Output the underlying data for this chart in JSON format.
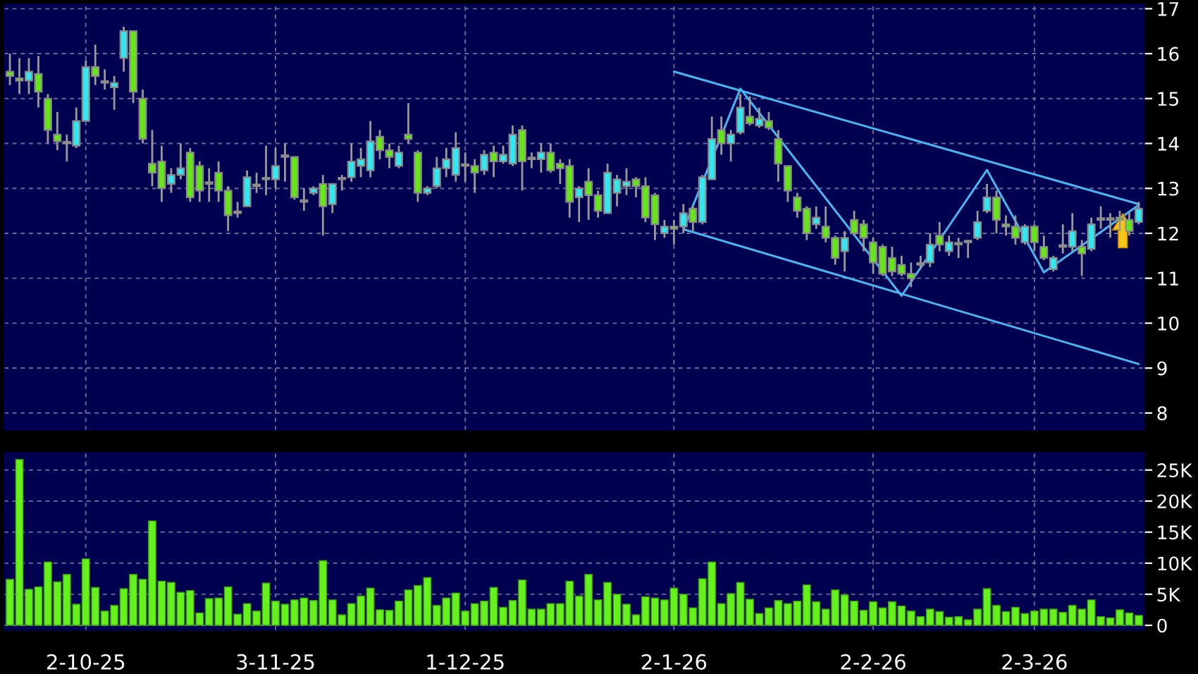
{
  "chart_data": [
    {
      "type": "candlestick",
      "categories": [
        null,
        null,
        null,
        null,
        null,
        null,
        null,
        null,
        null,
        null,
        null,
        null,
        null,
        null,
        null,
        null,
        null,
        null,
        null,
        null,
        null,
        null,
        null,
        null,
        null,
        null,
        null,
        null,
        null,
        null,
        null,
        null,
        null,
        null,
        null,
        null,
        null,
        null,
        null,
        null,
        null,
        null,
        null,
        null,
        null,
        null,
        null,
        null,
        null,
        null,
        null,
        null,
        null,
        null,
        null,
        null,
        null,
        null,
        null,
        null,
        null,
        null,
        null,
        null,
        null,
        null,
        null,
        null,
        null,
        null,
        null,
        null,
        null,
        null,
        null,
        null,
        null,
        null,
        null,
        null,
        null,
        null,
        null,
        null,
        null,
        null,
        null,
        null,
        null,
        null,
        null,
        null,
        null,
        null,
        null,
        null,
        null,
        null,
        null,
        null,
        null,
        null,
        null,
        null,
        null,
        null,
        null,
        null,
        null,
        null,
        null,
        null,
        null,
        null,
        null,
        null,
        null,
        null,
        null,
        null
      ],
      "ohlc": [
        [
          15.6,
          16.0,
          15.3,
          15.5
        ],
        [
          15.45,
          15.9,
          15.1,
          15.4
        ],
        [
          15.4,
          15.9,
          15.1,
          15.6
        ],
        [
          15.55,
          15.95,
          14.8,
          15.15
        ],
        [
          15.0,
          15.1,
          14.0,
          14.3
        ],
        [
          14.2,
          14.7,
          13.85,
          14.05
        ],
        [
          14.0,
          14.2,
          13.6,
          14.0
        ],
        [
          13.95,
          14.8,
          13.9,
          14.5
        ],
        [
          14.5,
          15.85,
          14.5,
          15.7
        ],
        [
          15.7,
          16.2,
          15.3,
          15.5
        ],
        [
          15.35,
          15.65,
          15.2,
          15.35
        ],
        [
          15.25,
          15.5,
          14.75,
          15.35
        ],
        [
          15.9,
          16.6,
          15.6,
          16.5
        ],
        [
          16.5,
          16.5,
          14.9,
          15.15
        ],
        [
          15.0,
          15.2,
          14.0,
          14.1
        ],
        [
          13.55,
          14.3,
          13.05,
          13.35
        ],
        [
          13.6,
          13.95,
          12.7,
          13.0
        ],
        [
          13.1,
          13.45,
          12.9,
          13.3
        ],
        [
          13.3,
          14.0,
          13.2,
          13.45
        ],
        [
          13.8,
          13.9,
          12.7,
          12.8
        ],
        [
          13.5,
          13.6,
          12.7,
          12.95
        ],
        [
          13.1,
          13.45,
          12.7,
          13.1
        ],
        [
          13.35,
          13.6,
          12.7,
          12.95
        ],
        [
          12.95,
          13.05,
          12.05,
          12.4
        ],
        [
          12.45,
          12.7,
          12.35,
          12.45
        ],
        [
          12.6,
          13.4,
          12.6,
          13.25
        ],
        [
          13.05,
          13.35,
          12.9,
          13.05
        ],
        [
          13.2,
          13.95,
          12.85,
          13.2
        ],
        [
          13.2,
          13.9,
          13.0,
          13.5
        ],
        [
          13.7,
          14.0,
          13.15,
          13.7
        ],
        [
          13.7,
          13.7,
          12.75,
          12.8
        ],
        [
          12.7,
          13.0,
          12.5,
          12.7
        ],
        [
          12.9,
          13.05,
          12.85,
          13.0
        ],
        [
          13.1,
          13.3,
          11.95,
          12.6
        ],
        [
          12.65,
          13.1,
          12.45,
          13.1
        ],
        [
          13.2,
          13.3,
          12.95,
          13.2
        ],
        [
          13.25,
          14.0,
          13.15,
          13.6
        ],
        [
          13.5,
          13.9,
          13.25,
          13.65
        ],
        [
          13.4,
          14.5,
          13.25,
          14.05
        ],
        [
          14.15,
          14.3,
          13.65,
          13.85
        ],
        [
          13.85,
          14.0,
          13.45,
          13.7
        ],
        [
          13.5,
          13.95,
          13.45,
          13.8
        ],
        [
          14.2,
          14.9,
          14.0,
          14.1
        ],
        [
          13.8,
          13.85,
          12.7,
          12.9
        ],
        [
          12.9,
          13.05,
          12.85,
          13.0
        ],
        [
          13.05,
          13.7,
          13.0,
          13.45
        ],
        [
          13.45,
          13.9,
          13.25,
          13.65
        ],
        [
          13.3,
          14.25,
          13.15,
          13.9
        ],
        [
          13.5,
          13.8,
          13.15,
          13.5
        ],
        [
          13.5,
          13.65,
          12.9,
          13.35
        ],
        [
          13.4,
          13.85,
          13.3,
          13.75
        ],
        [
          13.8,
          13.95,
          13.25,
          13.6
        ],
        [
          13.6,
          13.95,
          13.55,
          13.75
        ],
        [
          13.55,
          14.4,
          13.5,
          14.2
        ],
        [
          14.3,
          14.4,
          12.95,
          13.6
        ],
        [
          13.65,
          13.8,
          13.45,
          13.65
        ],
        [
          13.65,
          14.0,
          13.35,
          13.8
        ],
        [
          13.8,
          14.0,
          13.35,
          13.4
        ],
        [
          13.55,
          13.65,
          13.1,
          13.45
        ],
        [
          13.5,
          13.65,
          12.35,
          12.7
        ],
        [
          12.8,
          13.05,
          12.25,
          13.0
        ],
        [
          13.15,
          13.45,
          12.3,
          12.85
        ],
        [
          12.85,
          12.95,
          12.35,
          12.5
        ],
        [
          12.45,
          13.55,
          12.45,
          13.35
        ],
        [
          12.9,
          13.3,
          12.6,
          13.2
        ],
        [
          13.05,
          13.45,
          12.85,
          13.15
        ],
        [
          13.2,
          13.25,
          12.8,
          13.05
        ],
        [
          13.05,
          13.25,
          12.25,
          12.35
        ],
        [
          12.85,
          12.9,
          11.85,
          12.2
        ],
        [
          12.0,
          12.3,
          11.9,
          12.15
        ],
        [
          12.15,
          12.3,
          11.75,
          12.1
        ],
        [
          12.15,
          12.65,
          12.0,
          12.45
        ],
        [
          12.55,
          12.6,
          12.05,
          12.25
        ],
        [
          12.25,
          13.3,
          12.2,
          13.25
        ],
        [
          13.2,
          14.6,
          13.2,
          14.1
        ],
        [
          14.3,
          14.6,
          13.75,
          14.0
        ],
        [
          14.0,
          14.3,
          13.6,
          14.2
        ],
        [
          14.25,
          15.1,
          14.2,
          14.8
        ],
        [
          14.6,
          15.05,
          14.4,
          14.45
        ],
        [
          14.4,
          14.8,
          14.35,
          14.55
        ],
        [
          14.5,
          14.7,
          14.3,
          14.35
        ],
        [
          14.1,
          14.3,
          13.15,
          13.55
        ],
        [
          13.5,
          13.5,
          12.7,
          12.95
        ],
        [
          12.8,
          12.9,
          12.35,
          12.5
        ],
        [
          12.55,
          12.6,
          11.85,
          12.0
        ],
        [
          12.2,
          12.6,
          12.1,
          12.35
        ],
        [
          12.15,
          12.6,
          11.8,
          11.9
        ],
        [
          11.9,
          11.95,
          11.3,
          11.45
        ],
        [
          11.6,
          12.05,
          11.15,
          11.9
        ],
        [
          12.3,
          12.5,
          11.95,
          12.0
        ],
        [
          12.2,
          12.3,
          11.6,
          11.9
        ],
        [
          11.8,
          11.9,
          11.1,
          11.35
        ],
        [
          11.7,
          11.75,
          11.05,
          11.1
        ],
        [
          11.45,
          11.7,
          11.05,
          11.15
        ],
        [
          11.3,
          11.5,
          11.05,
          11.1
        ],
        [
          11.1,
          11.35,
          10.8,
          11.0
        ],
        [
          11.3,
          11.5,
          11.2,
          11.3
        ],
        [
          11.35,
          12.0,
          11.25,
          11.75
        ],
        [
          11.95,
          12.25,
          11.6,
          11.75
        ],
        [
          11.6,
          11.95,
          11.5,
          11.8
        ],
        [
          11.75,
          11.9,
          11.45,
          11.75
        ],
        [
          11.8,
          11.85,
          11.45,
          11.8
        ],
        [
          11.9,
          12.5,
          11.85,
          12.25
        ],
        [
          12.5,
          13.1,
          12.45,
          12.8
        ],
        [
          12.8,
          12.95,
          12.0,
          12.3
        ],
        [
          12.2,
          12.4,
          11.95,
          12.15
        ],
        [
          12.15,
          12.4,
          11.75,
          11.9
        ],
        [
          11.8,
          12.2,
          11.75,
          12.15
        ],
        [
          12.15,
          12.2,
          11.6,
          11.8
        ],
        [
          11.7,
          11.95,
          11.4,
          11.45
        ],
        [
          11.2,
          11.5,
          11.15,
          11.45
        ],
        [
          11.7,
          12.2,
          11.55,
          11.7
        ],
        [
          11.7,
          12.45,
          11.6,
          12.05
        ],
        [
          11.7,
          11.85,
          11.05,
          11.55
        ],
        [
          11.65,
          12.35,
          11.6,
          12.2
        ],
        [
          12.3,
          12.6,
          12.1,
          12.3
        ],
        [
          12.3,
          12.45,
          11.9,
          12.3
        ],
        [
          12.35,
          12.5,
          12.05,
          12.3
        ],
        [
          12.3,
          12.45,
          11.95,
          12.05
        ],
        [
          12.25,
          12.7,
          12.2,
          12.55
        ]
      ],
      "colors": [
        "#66e619",
        "#66e619",
        "#33e6f0",
        "#66e619",
        "#66e619",
        "#66e619",
        "#a0a0a0",
        "#33e6f0",
        "#33e6f0",
        "#66e619",
        "#a0a0a0",
        "#33e6f0",
        "#33e6f0",
        "#66e619",
        "#66e619",
        "#66e619",
        "#66e619",
        "#33e6f0",
        "#33e6f0",
        "#66e619",
        "#66e619",
        "#a0a0a0",
        "#66e619",
        "#66e619",
        "#a0a0a0",
        "#33e6f0",
        "#a0a0a0",
        "#a0a0a0",
        "#33e6f0",
        "#a0a0a0",
        "#66e619",
        "#a0a0a0",
        "#33e6f0",
        "#66e619",
        "#33e6f0",
        "#a0a0a0",
        "#33e6f0",
        "#33e6f0",
        "#33e6f0",
        "#66e619",
        "#66e619",
        "#33e6f0",
        "#66e619",
        "#66e619",
        "#33e6f0",
        "#33e6f0",
        "#33e6f0",
        "#33e6f0",
        "#a0a0a0",
        "#66e619",
        "#33e6f0",
        "#66e619",
        "#33e6f0",
        "#33e6f0",
        "#66e619",
        "#a0a0a0",
        "#33e6f0",
        "#66e619",
        "#66e619",
        "#66e619",
        "#33e6f0",
        "#66e619",
        "#66e619",
        "#33e6f0",
        "#33e6f0",
        "#33e6f0",
        "#66e619",
        "#66e619",
        "#66e619",
        "#33e6f0",
        "#66e619",
        "#33e6f0",
        "#66e619",
        "#33e6f0",
        "#33e6f0",
        "#66e619",
        "#33e6f0",
        "#33e6f0",
        "#66e619",
        "#33e6f0",
        "#66e619",
        "#66e619",
        "#66e619",
        "#66e619",
        "#66e619",
        "#33e6f0",
        "#66e619",
        "#66e619",
        "#33e6f0",
        "#66e619",
        "#66e619",
        "#66e619",
        "#66e619",
        "#66e619",
        "#66e619",
        "#66e619",
        "#a0a0a0",
        "#33e6f0",
        "#66e619",
        "#33e6f0",
        "#a0a0a0",
        "#a0a0a0",
        "#33e6f0",
        "#33e6f0",
        "#66e619",
        "#66e619",
        "#66e619",
        "#33e6f0",
        "#66e619",
        "#66e619",
        "#33e6f0",
        "#a0a0a0",
        "#33e6f0",
        "#66e619",
        "#33e6f0",
        "#a0a0a0",
        "#a0a0a0",
        "#66e619",
        "#66e619",
        "#33e6f0"
      ],
      "series": [
        {
          "type": "line",
          "color": "#4ab4ee",
          "values": [
            null,
            null,
            null,
            null,
            null,
            null,
            null,
            null,
            null,
            null,
            null,
            null,
            null,
            null,
            null,
            null,
            null,
            null,
            null,
            null,
            null,
            null,
            null,
            null,
            null,
            null,
            null,
            null,
            null,
            null,
            null,
            null,
            null,
            null,
            null,
            null,
            null,
            null,
            null,
            null,
            null,
            null,
            null,
            null,
            null,
            null,
            null,
            null,
            null,
            null,
            null,
            null,
            null,
            null,
            null,
            null,
            null,
            null,
            null,
            null,
            null,
            null,
            null,
            null,
            null,
            null,
            null,
            null,
            null,
            null,
            15.6,
            null,
            null,
            null,
            null,
            null,
            null,
            null,
            null,
            null,
            null,
            null,
            null,
            null,
            null,
            null,
            null,
            null,
            null,
            null,
            null,
            null,
            null,
            null,
            null,
            null,
            null,
            null,
            null,
            null,
            null,
            null,
            null,
            null,
            null,
            null,
            null,
            null,
            null,
            null,
            null,
            null,
            null,
            null,
            null,
            null,
            null,
            null,
            null,
            12.65
          ]
        },
        {
          "type": "line",
          "color": "#4ab4ee",
          "values": [
            null,
            null,
            null,
            null,
            null,
            null,
            null,
            null,
            null,
            null,
            null,
            null,
            null,
            null,
            null,
            null,
            null,
            null,
            null,
            null,
            null,
            null,
            null,
            null,
            null,
            null,
            null,
            null,
            null,
            null,
            null,
            null,
            null,
            null,
            null,
            null,
            null,
            null,
            null,
            null,
            null,
            null,
            null,
            null,
            null,
            null,
            null,
            null,
            null,
            null,
            null,
            null,
            null,
            null,
            null,
            null,
            null,
            null,
            null,
            null,
            null,
            null,
            null,
            null,
            null,
            null,
            null,
            null,
            null,
            null,
            null,
            12.09,
            null,
            null,
            null,
            null,
            null,
            null,
            null,
            null,
            null,
            null,
            null,
            null,
            null,
            null,
            null,
            null,
            null,
            null,
            null,
            null,
            null,
            null,
            null,
            null,
            null,
            null,
            null,
            null,
            null,
            null,
            null,
            null,
            null,
            null,
            null,
            null,
            null,
            null,
            null,
            null,
            null,
            null,
            null,
            null,
            null,
            null,
            null,
            9.09
          ]
        },
        {
          "type": "line",
          "color": "#4ab4ee",
          "values": [
            null,
            null,
            null,
            null,
            null,
            null,
            null,
            null,
            null,
            null,
            null,
            null,
            null,
            null,
            null,
            null,
            null,
            null,
            null,
            null,
            null,
            null,
            null,
            null,
            null,
            null,
            null,
            null,
            null,
            null,
            null,
            null,
            null,
            null,
            null,
            null,
            null,
            null,
            null,
            null,
            null,
            null,
            null,
            null,
            null,
            null,
            null,
            null,
            null,
            null,
            null,
            null,
            null,
            null,
            null,
            null,
            null,
            null,
            null,
            null,
            null,
            null,
            null,
            null,
            null,
            null,
            null,
            null,
            null,
            null,
            null,
            12.09,
            null,
            null,
            null,
            null,
            null,
            15.22,
            null,
            null,
            null,
            null,
            null,
            null,
            null,
            null,
            null,
            null,
            null,
            null,
            null,
            null,
            null,
            null,
            10.61,
            null,
            null,
            null,
            null,
            null,
            null,
            null,
            null,
            13.41,
            null,
            null,
            null,
            null,
            null,
            11.13,
            null,
            null,
            null,
            null,
            null,
            null,
            null,
            null,
            null,
            12.63
          ]
        }
      ],
      "ylim": [
        7.62,
        17.1
      ],
      "yticks": [
        8,
        9,
        10,
        11,
        12,
        13,
        14,
        15,
        16,
        17
      ],
      "grid": true,
      "tick_labels": "y"
    },
    {
      "type": "bar",
      "categories": [
        null,
        null,
        null,
        null,
        null,
        null,
        null,
        null,
        "2-10-25",
        null,
        null,
        null,
        null,
        null,
        null,
        null,
        null,
        null,
        null,
        null,
        null,
        null,
        null,
        null,
        null,
        null,
        null,
        null,
        "3-11-25",
        null,
        null,
        null,
        null,
        null,
        null,
        null,
        null,
        null,
        null,
        null,
        null,
        null,
        null,
        null,
        null,
        null,
        null,
        null,
        "1-12-25",
        null,
        null,
        null,
        null,
        null,
        null,
        null,
        null,
        null,
        null,
        null,
        null,
        null,
        null,
        null,
        null,
        null,
        null,
        null,
        null,
        null,
        "2-1-26",
        null,
        null,
        null,
        null,
        null,
        null,
        null,
        null,
        null,
        null,
        null,
        null,
        null,
        null,
        null,
        null,
        null,
        null,
        null,
        null,
        "2-2-26",
        null,
        null,
        null,
        null,
        null,
        null,
        null,
        null,
        null,
        null,
        null,
        null,
        null,
        null,
        null,
        null,
        "2-3-26",
        null,
        null,
        null,
        null,
        null,
        null,
        null,
        null,
        null,
        null,
        null
      ],
      "values": [
        7400,
        26700,
        5800,
        6200,
        10200,
        7000,
        8200,
        3400,
        10700,
        6100,
        2300,
        3200,
        5900,
        8200,
        7400,
        16800,
        7100,
        6900,
        5300,
        5600,
        2000,
        4300,
        4400,
        6200,
        1800,
        3500,
        2300,
        6800,
        3900,
        3400,
        4100,
        4400,
        4000,
        10400,
        4100,
        1700,
        3500,
        4700,
        6000,
        2500,
        2400,
        3900,
        5700,
        6400,
        7700,
        3200,
        4400,
        5200,
        2300,
        3500,
        3900,
        6100,
        2900,
        4000,
        7300,
        2600,
        2600,
        3500,
        3500,
        7100,
        4700,
        8200,
        4100,
        6900,
        5000,
        3400,
        1700,
        4600,
        4400,
        4100,
        6000,
        5000,
        2800,
        7500,
        10200,
        3500,
        5100,
        6900,
        4200,
        1900,
        2800,
        4000,
        3500,
        3900,
        6500,
        3800,
        2600,
        5700,
        4900,
        3900,
        2400,
        3800,
        2800,
        3800,
        3100,
        2300,
        1400,
        2600,
        2200,
        1300,
        1400,
        900,
        2600,
        5900,
        3200,
        2200,
        2900,
        1900,
        2300,
        2600,
        2600,
        2100,
        3200,
        2600,
        4100,
        1400,
        1200,
        2500,
        2000,
        1600
      ],
      "color": "#66f01e",
      "ylim": [
        -800,
        27800
      ],
      "yticks": [
        {
          "value": 0,
          "label": "0"
        },
        {
          "value": 5000,
          "label": "5K"
        },
        {
          "value": 10000,
          "label": "10K"
        },
        {
          "value": 15000,
          "label": "15K"
        },
        {
          "value": 20000,
          "label": "20K"
        },
        {
          "value": 25000,
          "label": "25K"
        }
      ],
      "grid": true
    }
  ]
}
